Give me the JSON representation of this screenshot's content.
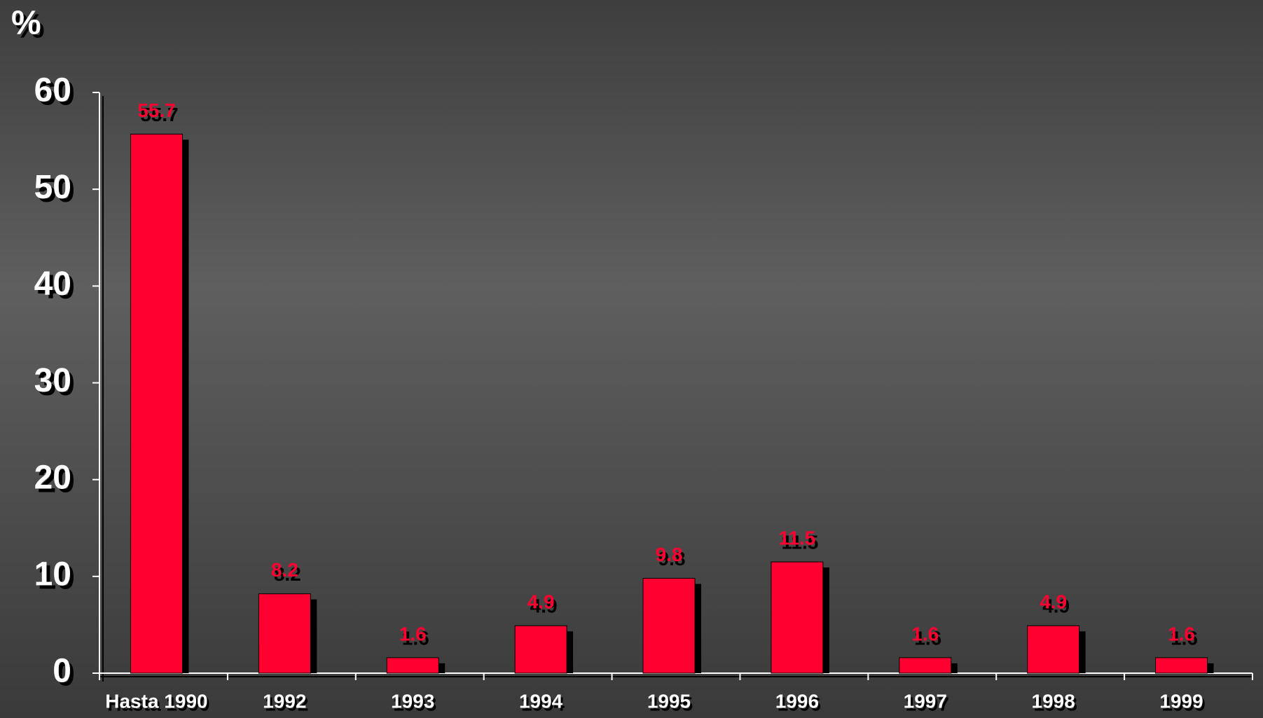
{
  "chart_data": {
    "type": "bar",
    "y_label": "%",
    "categories": [
      "Hasta 1990",
      "1992",
      "1993",
      "1994",
      "1995",
      "1996",
      "1997",
      "1998",
      "1999"
    ],
    "values": [
      55.7,
      8.2,
      1.6,
      4.9,
      9.8,
      11.5,
      1.6,
      4.9,
      1.6
    ],
    "color": "#ff0030",
    "ylim": [
      0,
      60
    ],
    "yticks": [
      0,
      10,
      20,
      30,
      40,
      50,
      60
    ],
    "grid": false
  }
}
